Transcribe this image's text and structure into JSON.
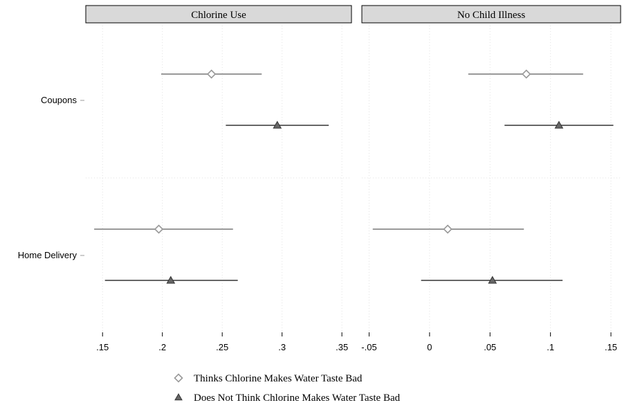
{
  "chart_data": {
    "type": "scatter",
    "subtype": "coefficient plot with confidence intervals",
    "categories": [
      "Coupons",
      "Home Delivery"
    ],
    "colors": {
      "thinks": "#999999",
      "does_not": "#666666",
      "strip": "#d9d9d9"
    },
    "series_meta": [
      {
        "key": "thinks",
        "name": "Thinks Chlorine Makes Water Taste Bad",
        "marker": "diamond-hollow"
      },
      {
        "key": "does_not",
        "name": "Does Not Think Chlorine Makes Water Taste Bad",
        "marker": "triangle-filled"
      }
    ],
    "panels": [
      {
        "title": "Chlorine Use",
        "xlim": [
          0.136,
          0.358
        ],
        "xticks": [
          0.15,
          0.2,
          0.25,
          0.3,
          0.35
        ],
        "xtick_labels": [
          ".15",
          ".2",
          ".25",
          ".3",
          ".35"
        ],
        "series": {
          "thinks": [
            {
              "category": "Coupons",
              "estimate": 0.241,
              "ci": [
                0.199,
                0.283
              ]
            },
            {
              "category": "Home Delivery",
              "estimate": 0.197,
              "ci": [
                0.143,
                0.259
              ]
            }
          ],
          "does_not": [
            {
              "category": "Coupons",
              "estimate": 0.296,
              "ci": [
                0.253,
                0.339
              ]
            },
            {
              "category": "Home Delivery",
              "estimate": 0.207,
              "ci": [
                0.152,
                0.263
              ]
            }
          ]
        }
      },
      {
        "title": "No Child Illness",
        "xlim": [
          -0.056,
          0.158
        ],
        "xticks": [
          -0.05,
          0,
          0.05,
          0.1,
          0.15
        ],
        "xtick_labels": [
          "-.05",
          "0",
          ".05",
          ".1",
          ".15"
        ],
        "series": {
          "thinks": [
            {
              "category": "Coupons",
              "estimate": 0.08,
              "ci": [
                0.032,
                0.127
              ]
            },
            {
              "category": "Home Delivery",
              "estimate": 0.015,
              "ci": [
                -0.047,
                0.078
              ]
            }
          ],
          "does_not": [
            {
              "category": "Coupons",
              "estimate": 0.107,
              "ci": [
                0.062,
                0.152
              ]
            },
            {
              "category": "Home Delivery",
              "estimate": 0.052,
              "ci": [
                -0.007,
                0.11
              ]
            }
          ]
        }
      }
    ],
    "legend_position": "bottom",
    "grid": "dotted vertical at ticks"
  }
}
